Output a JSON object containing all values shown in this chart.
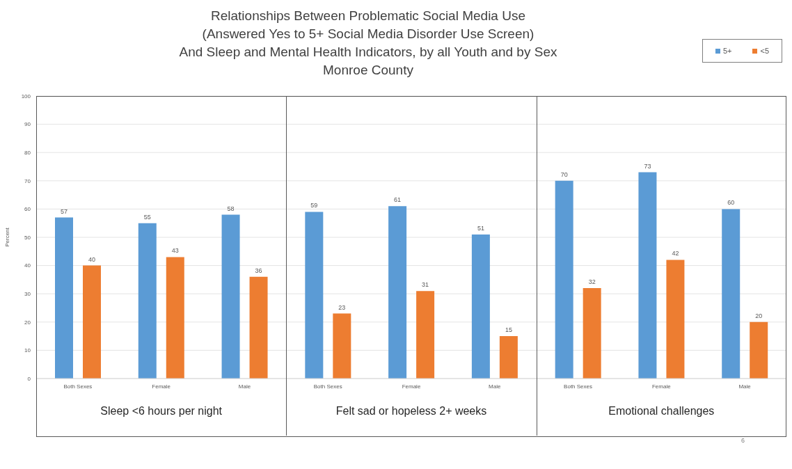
{
  "chart_data": {
    "type": "bar",
    "title": "Relationships Between Problematic Social Media Use\n(Answered Yes to 5+ Social Media Disorder Use Screen)\nAnd Sleep and Mental Health Indicators, by all Youth and by Sex\nMonroe County",
    "ylabel": "Percent",
    "categories": [
      "Both Sexes",
      "Female",
      "Male",
      "Both Sexes",
      "Female",
      "Male",
      "Both Sexes",
      "Female",
      "Male"
    ],
    "series": [
      {
        "name": "5+",
        "color": "#5b9bd5",
        "values": [
          57,
          55,
          58,
          59,
          61,
          51,
          70,
          73,
          60
        ]
      },
      {
        "name": "<5",
        "color": "#ed7d31",
        "values": [
          40,
          43,
          36,
          23,
          31,
          15,
          32,
          42,
          20
        ]
      }
    ],
    "ylim": [
      0,
      100
    ],
    "yticks": [
      0,
      10,
      20,
      30,
      40,
      50,
      60,
      70,
      80,
      90,
      100
    ],
    "grid": "y",
    "legend": "top right",
    "data_labels": true,
    "annotations": [
      "Sleep <6 hours per night",
      "Felt sad or hopeless 2+ weeks",
      "Emotional challenges",
      "6"
    ]
  }
}
